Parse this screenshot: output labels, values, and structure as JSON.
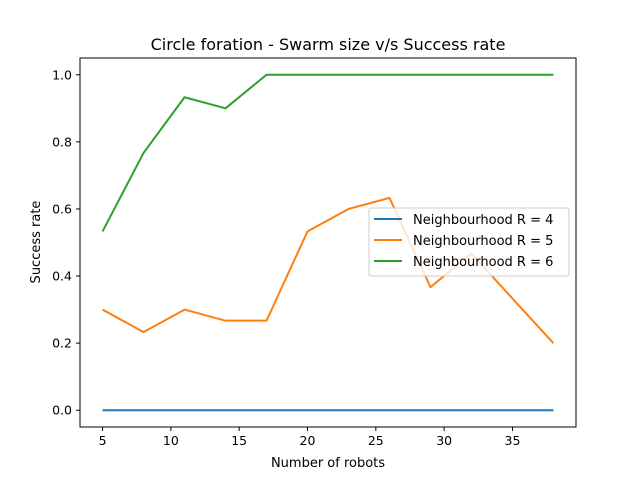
{
  "chart_data": {
    "type": "line",
    "title": "Circle foration - Swarm size v/s Success rate",
    "xlabel": "Number of robots",
    "ylabel": "Success rate",
    "xlim": [
      3.35,
      39.65
    ],
    "ylim": [
      -0.05,
      1.05
    ],
    "xticks": [
      5,
      10,
      15,
      20,
      25,
      30,
      35
    ],
    "yticks": [
      0.0,
      0.2,
      0.4,
      0.6,
      0.8,
      1.0
    ],
    "x": [
      5,
      8,
      11,
      14,
      17,
      20,
      23,
      26,
      29,
      32,
      35,
      38
    ],
    "series": [
      {
        "name": "Neighbourhood R = 4",
        "color": "#1f77b4",
        "values": [
          0,
          0,
          0,
          0,
          0,
          0,
          0,
          0,
          0,
          0,
          0,
          0
        ]
      },
      {
        "name": "Neighbourhood R = 5",
        "color": "#ff7f0e",
        "values": [
          0.3,
          0.233,
          0.3,
          0.267,
          0.267,
          0.533,
          0.6,
          0.633,
          0.367,
          0.467,
          0.333,
          0.2
        ]
      },
      {
        "name": "Neighbourhood R = 6",
        "color": "#2ca02c",
        "values": [
          0.533,
          0.767,
          0.933,
          0.9,
          1.0,
          1.0,
          1.0,
          1.0,
          1.0,
          1.0,
          1.0,
          1.0
        ]
      }
    ],
    "grid": false,
    "legend_position": "center-right"
  }
}
